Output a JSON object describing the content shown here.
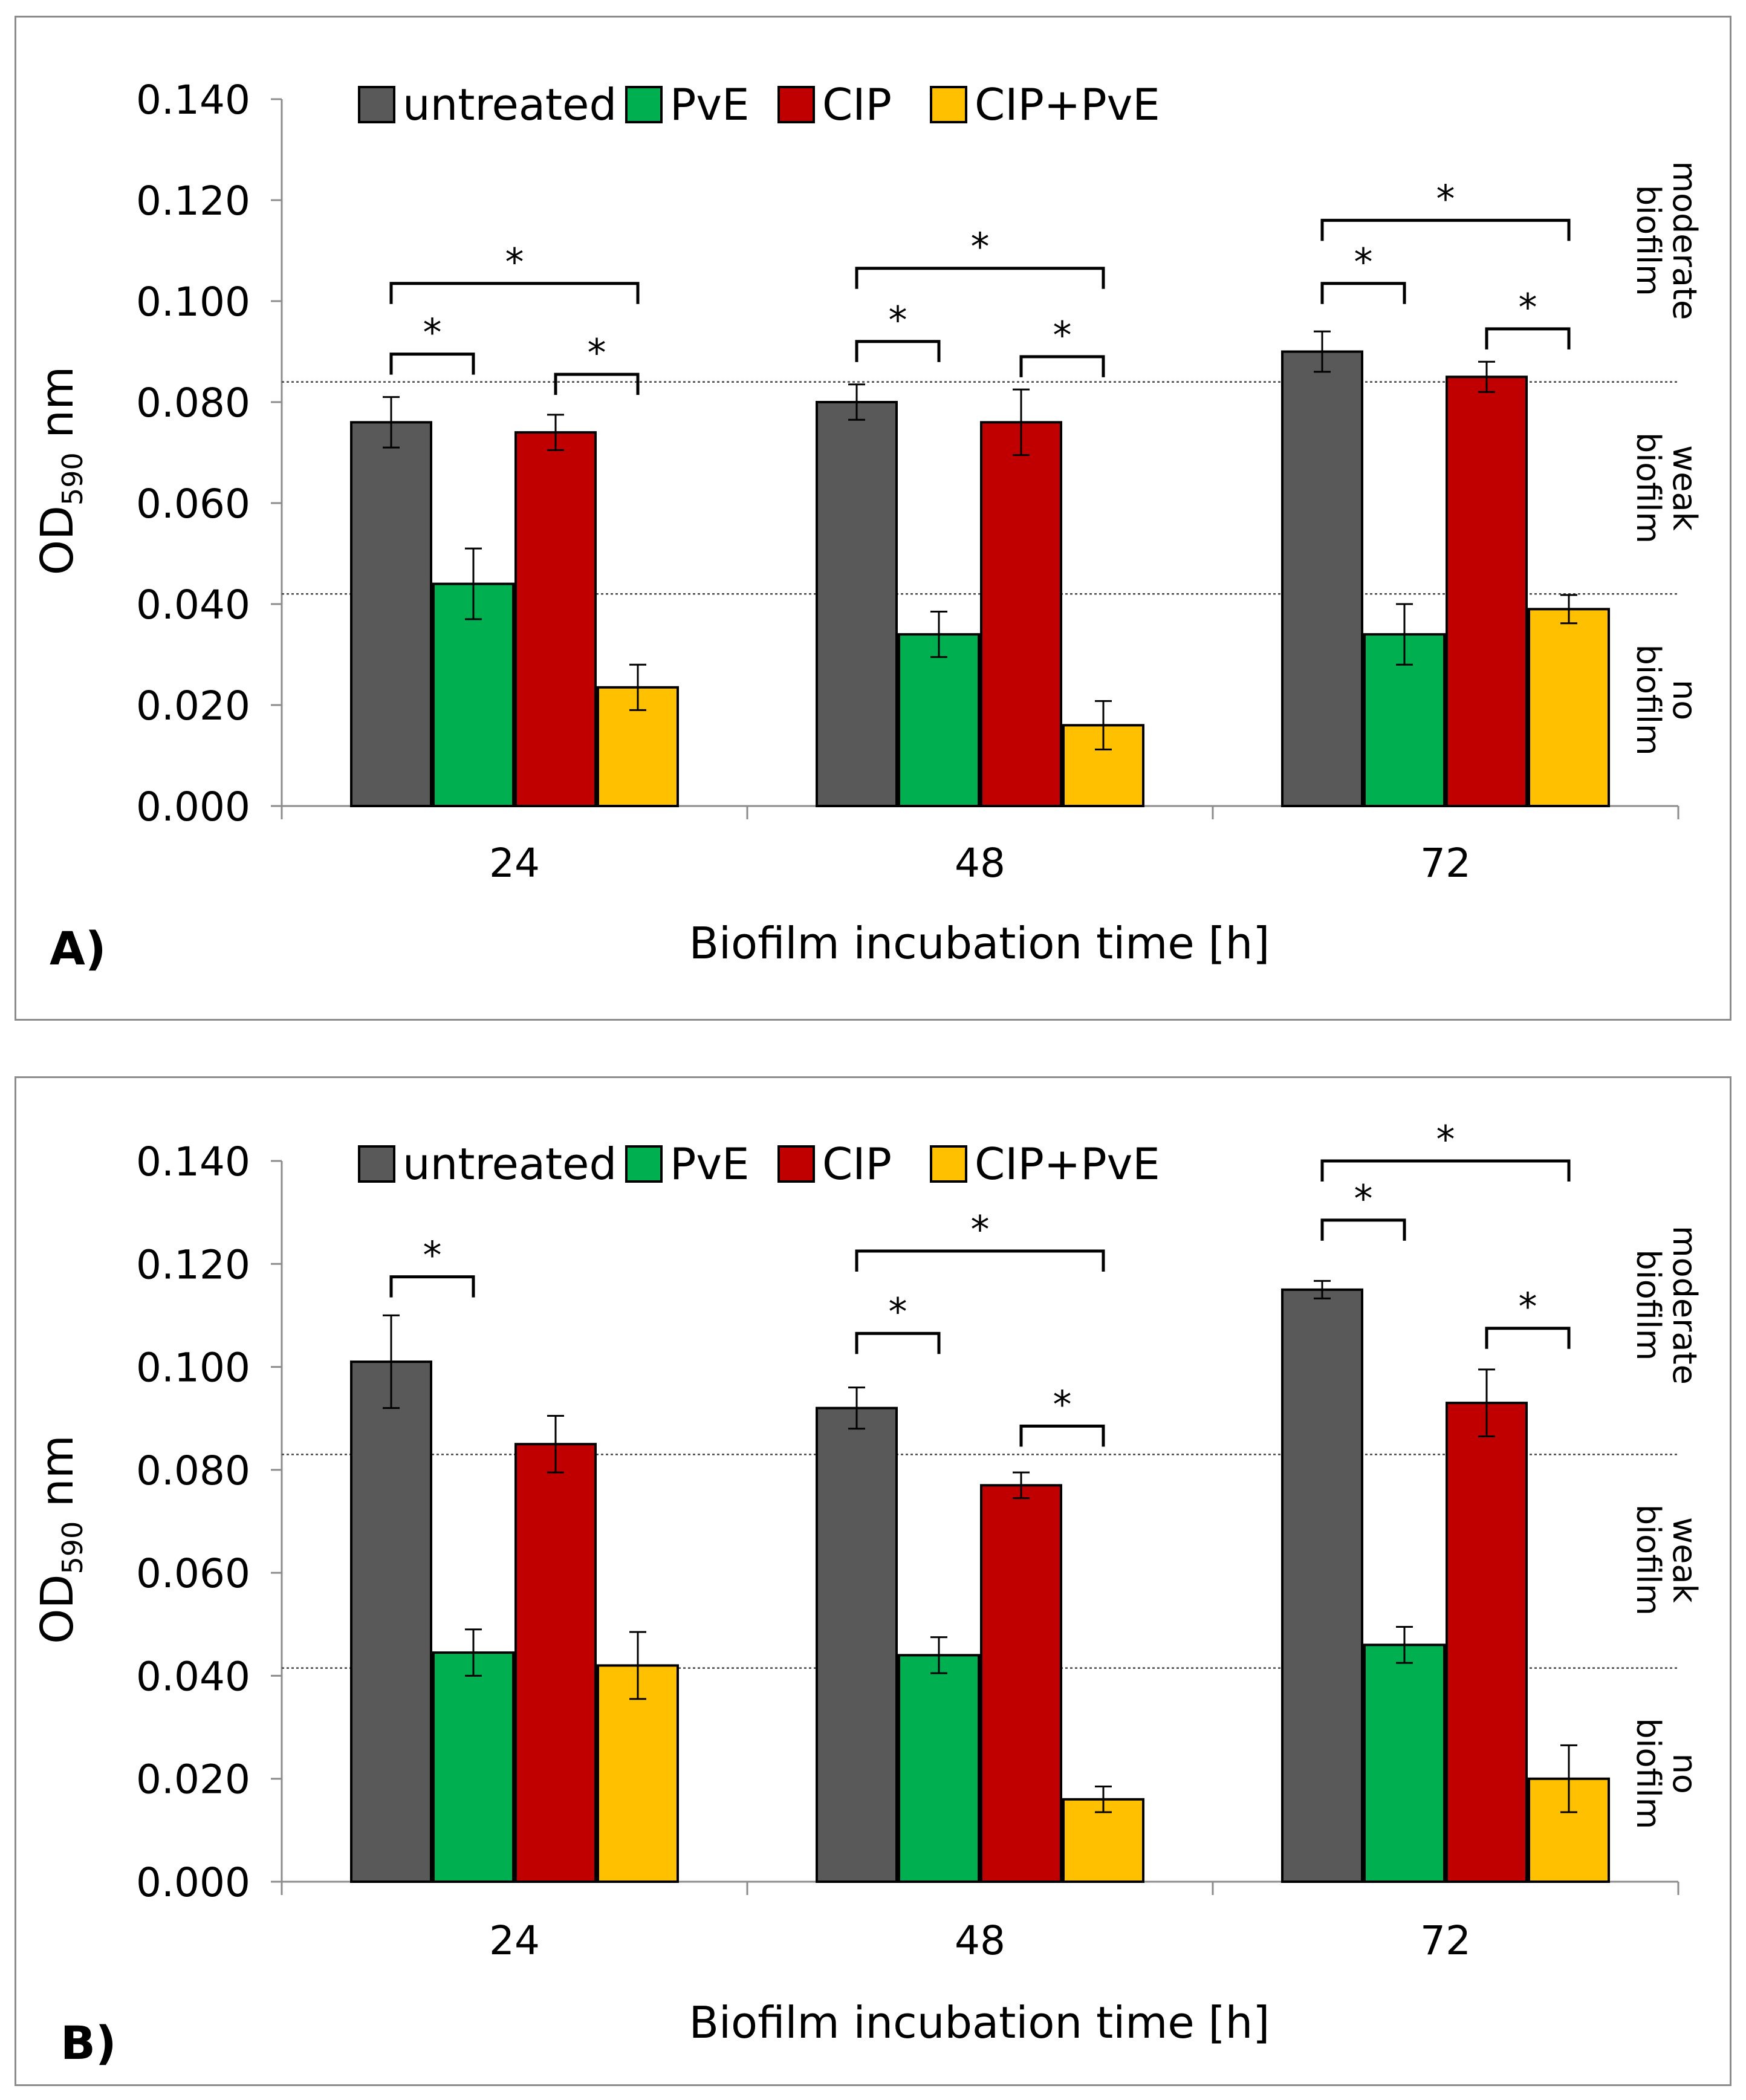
{
  "chart_data": [
    {
      "type": "bar",
      "panel_label": "A)",
      "categories": [
        "24",
        "48",
        "72"
      ],
      "series": [
        {
          "name": "untreated",
          "color": "#595959",
          "values": [
            0.076,
            0.08,
            0.09
          ],
          "errors": [
            0.005,
            0.0035,
            0.004
          ]
        },
        {
          "name": "PvE",
          "color": "#00b050",
          "values": [
            0.044,
            0.034,
            0.034
          ],
          "errors": [
            0.007,
            0.0045,
            0.006
          ]
        },
        {
          "name": "CIP",
          "color": "#c00000",
          "values": [
            0.074,
            0.076,
            0.085
          ],
          "errors": [
            0.0035,
            0.0065,
            0.003
          ]
        },
        {
          "name": "CIP+PvE",
          "color": "#ffc000",
          "values": [
            0.0235,
            0.016,
            0.039
          ],
          "errors": [
            0.0045,
            0.0048,
            0.0028
          ]
        }
      ],
      "xlabel": "Biofilm incubation time [h]",
      "ylabel_main": "OD",
      "ylabel_sub": "590",
      "ylabel_unit": " nm",
      "ylim": [
        0,
        0.14
      ],
      "yticks": [
        "0.000",
        "0.020",
        "0.040",
        "0.060",
        "0.080",
        "0.100",
        "0.120",
        "0.140"
      ],
      "thresholds": [
        0.042,
        0.084
      ],
      "zones": [
        {
          "line1": "no",
          "line2": "biofilm",
          "y": 0.021
        },
        {
          "line1": "weak",
          "line2": "biofilm",
          "y": 0.063
        },
        {
          "line1": "moderate",
          "line2": "biofilm",
          "y": 0.112
        }
      ],
      "significance": [
        {
          "group": 0,
          "from": 0,
          "to": 1,
          "level": 0.0895,
          "label": "*"
        },
        {
          "group": 0,
          "from": 2,
          "to": 3,
          "level": 0.0855,
          "label": "*"
        },
        {
          "group": 0,
          "from": 0,
          "to": 3,
          "level": 0.1035,
          "label": "*"
        },
        {
          "group": 1,
          "from": 0,
          "to": 1,
          "level": 0.092,
          "label": "*"
        },
        {
          "group": 1,
          "from": 2,
          "to": 3,
          "level": 0.089,
          "label": "*"
        },
        {
          "group": 1,
          "from": 0,
          "to": 3,
          "level": 0.1065,
          "label": "*"
        },
        {
          "group": 2,
          "from": 0,
          "to": 1,
          "level": 0.1035,
          "label": "*"
        },
        {
          "group": 2,
          "from": 2,
          "to": 3,
          "level": 0.0945,
          "label": "*"
        },
        {
          "group": 2,
          "from": 0,
          "to": 3,
          "level": 0.116,
          "label": "*"
        }
      ]
    },
    {
      "type": "bar",
      "panel_label": "B)",
      "categories": [
        "24",
        "48",
        "72"
      ],
      "series": [
        {
          "name": "untreated",
          "color": "#595959",
          "values": [
            0.101,
            0.092,
            0.115
          ],
          "errors": [
            0.009,
            0.004,
            0.0017
          ]
        },
        {
          "name": "PvE",
          "color": "#00b050",
          "values": [
            0.0445,
            0.044,
            0.046
          ],
          "errors": [
            0.0045,
            0.0035,
            0.0035
          ]
        },
        {
          "name": "CIP",
          "color": "#c00000",
          "values": [
            0.085,
            0.077,
            0.093
          ],
          "errors": [
            0.0055,
            0.0025,
            0.0065
          ]
        },
        {
          "name": "CIP+PvE",
          "color": "#ffc000",
          "values": [
            0.042,
            0.016,
            0.02
          ],
          "errors": [
            0.0065,
            0.0025,
            0.0065
          ]
        }
      ],
      "xlabel": "Biofilm incubation time [h]",
      "ylabel_main": "OD",
      "ylabel_sub": "590",
      "ylabel_unit": " nm",
      "ylim": [
        0,
        0.14
      ],
      "yticks": [
        "0.000",
        "0.020",
        "0.040",
        "0.060",
        "0.080",
        "0.100",
        "0.120",
        "0.140"
      ],
      "thresholds": [
        0.0415,
        0.083
      ],
      "zones": [
        {
          "line1": "no",
          "line2": "biofilm",
          "y": 0.021
        },
        {
          "line1": "weak",
          "line2": "biofilm",
          "y": 0.0625
        },
        {
          "line1": "moderate",
          "line2": "biofilm",
          "y": 0.112
        }
      ],
      "significance": [
        {
          "group": 0,
          "from": 0,
          "to": 1,
          "level": 0.1175,
          "label": "*"
        },
        {
          "group": 1,
          "from": 0,
          "to": 1,
          "level": 0.1065,
          "label": "*"
        },
        {
          "group": 1,
          "from": 2,
          "to": 3,
          "level": 0.0885,
          "label": "*"
        },
        {
          "group": 1,
          "from": 0,
          "to": 3,
          "level": 0.1225,
          "label": "*"
        },
        {
          "group": 2,
          "from": 0,
          "to": 1,
          "level": 0.1285,
          "label": "*"
        },
        {
          "group": 2,
          "from": 2,
          "to": 3,
          "level": 0.1075,
          "label": "*"
        },
        {
          "group": 2,
          "from": 0,
          "to": 3,
          "level": 0.14,
          "label": "*"
        }
      ]
    }
  ]
}
